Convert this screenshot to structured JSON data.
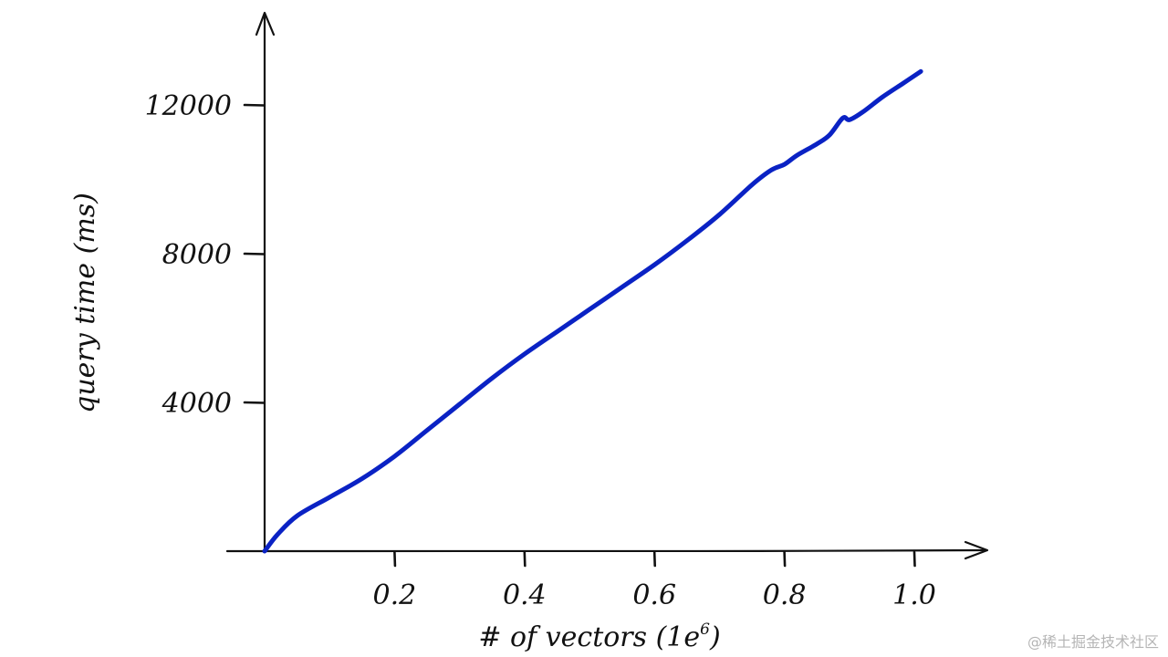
{
  "chart_data": {
    "type": "line",
    "xlabel": "# of vectors (1e",
    "xlabel_exp": "6",
    "xlabel_close": ")",
    "ylabel": "query time (ms)",
    "xlim": [
      0,
      1.1
    ],
    "ylim": [
      0,
      14000
    ],
    "x_ticks": [
      {
        "value": 0.2,
        "label": "0.2"
      },
      {
        "value": 0.4,
        "label": "0.4"
      },
      {
        "value": 0.6,
        "label": "0.6"
      },
      {
        "value": 0.8,
        "label": "0.8"
      },
      {
        "value": 1.0,
        "label": "1.0"
      }
    ],
    "y_ticks": [
      {
        "value": 4000,
        "label": "4000"
      },
      {
        "value": 8000,
        "label": "8000"
      },
      {
        "value": 12000,
        "label": "12000"
      }
    ],
    "grid": false,
    "series": [
      {
        "color": "#0a22c4",
        "x": [
          0.0,
          0.02,
          0.05,
          0.1,
          0.15,
          0.2,
          0.25,
          0.3,
          0.35,
          0.4,
          0.45,
          0.5,
          0.55,
          0.6,
          0.65,
          0.7,
          0.75,
          0.78,
          0.8,
          0.82,
          0.85,
          0.87,
          0.89,
          0.9,
          0.92,
          0.95,
          0.98,
          1.01
        ],
        "y": [
          0,
          450,
          950,
          1450,
          1950,
          2550,
          3250,
          3950,
          4650,
          5300,
          5900,
          6500,
          7100,
          7700,
          8350,
          9050,
          9850,
          10250,
          10400,
          10650,
          10950,
          11200,
          11650,
          11600,
          11800,
          12200,
          12550,
          12900
        ]
      }
    ]
  },
  "watermark": "@稀土掘金技术社区"
}
